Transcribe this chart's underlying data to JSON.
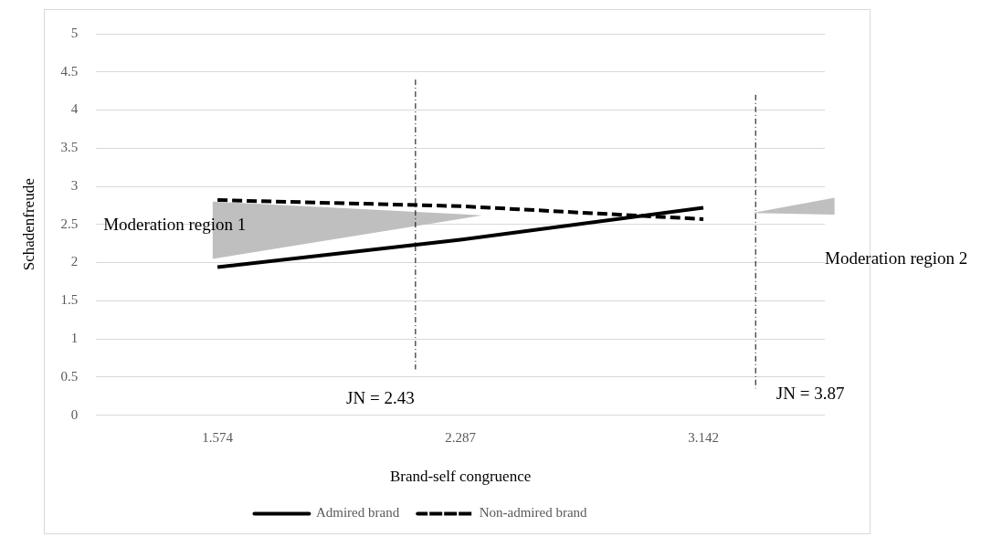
{
  "chart_data": {
    "type": "line",
    "xlabel": "Brand-self congruence",
    "ylabel": "Schadenfreude",
    "categories": [
      "1.574",
      "2.287",
      "3.142"
    ],
    "series": [
      {
        "name": "Admired brand",
        "color": "#000000",
        "values": [
          1.94,
          2.3,
          2.72
        ],
        "line_style": "solid"
      },
      {
        "name": "Non-admired brand",
        "color": "#000000",
        "values": [
          2.82,
          2.74,
          2.57
        ],
        "line_style": "dashed"
      }
    ],
    "ylim": [
      0,
      5
    ],
    "yticks": [
      0,
      0.5,
      1,
      1.5,
      2,
      2.5,
      3,
      3.5,
      4,
      4.5,
      5
    ],
    "grid": "y",
    "legend": "bottom",
    "marker": "none",
    "annotations": [
      "Moderation region 1",
      "Moderation region 2",
      "JN = 2.43",
      "JN = 3.87"
    ]
  }
}
